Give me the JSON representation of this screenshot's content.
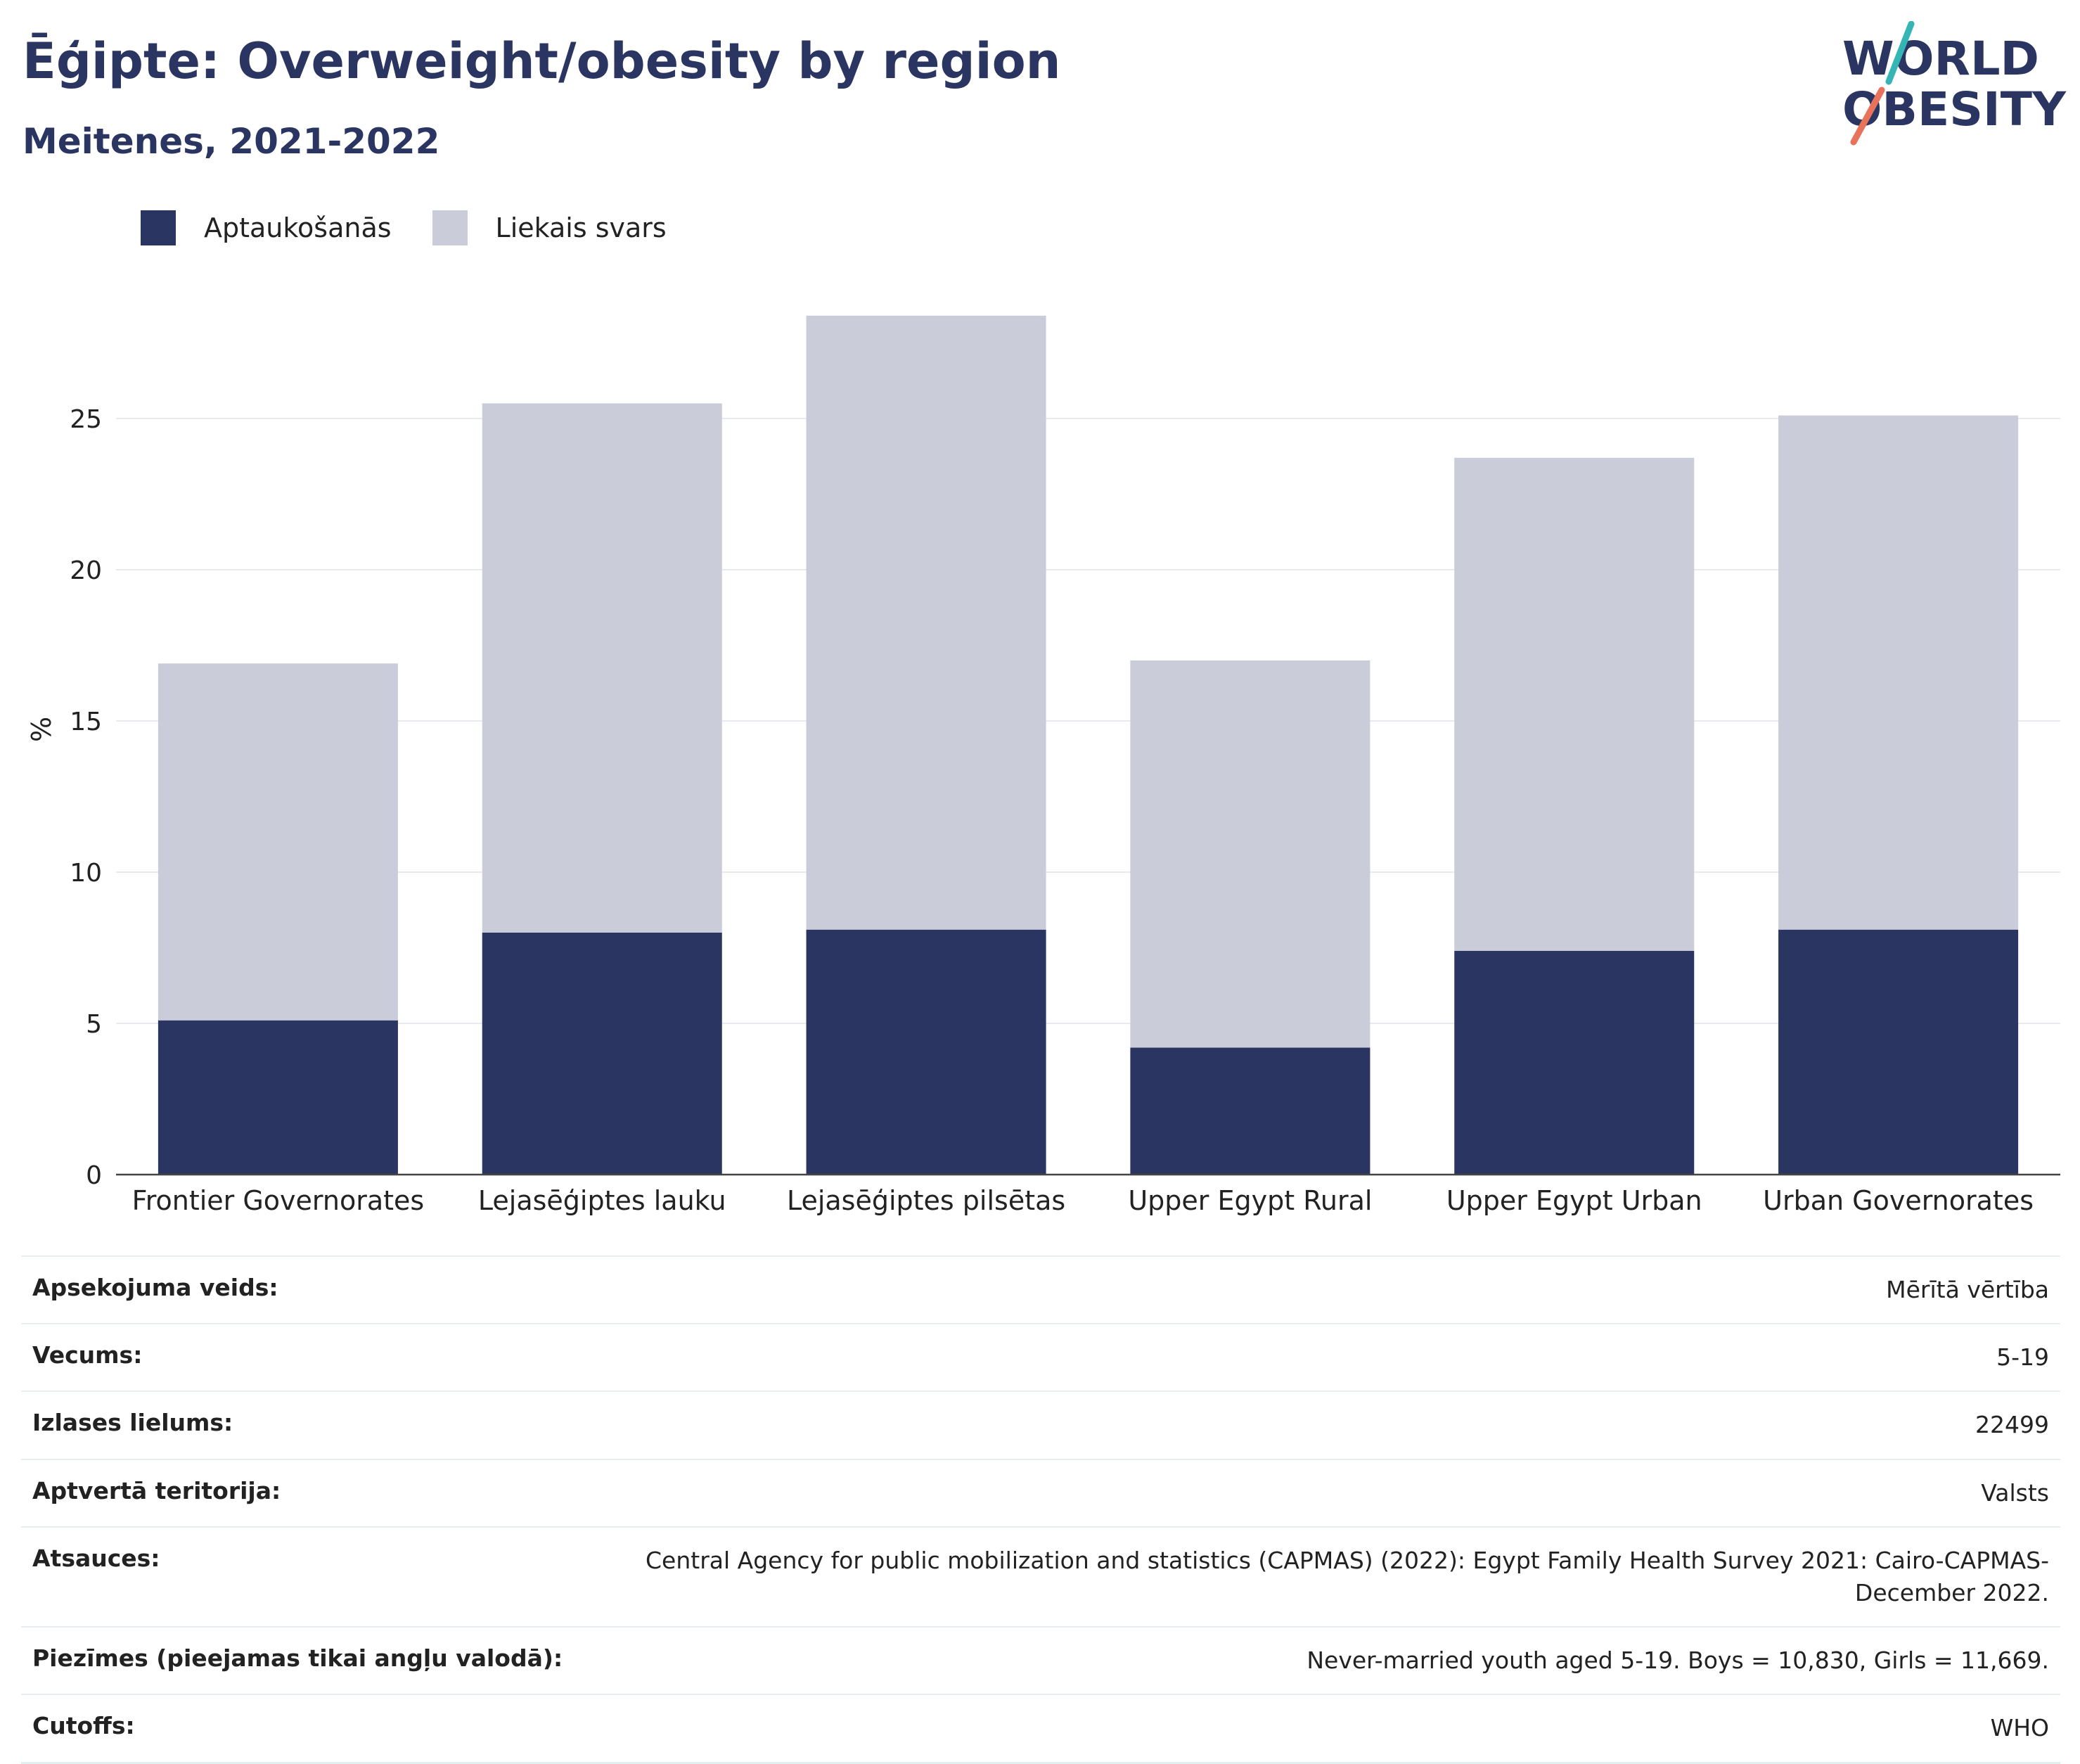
{
  "header": {
    "title": "Ēģipte: Overweight/obesity by region",
    "subtitle": "Meitenes, 2021-2022"
  },
  "logo": {
    "line1": "WORLD",
    "line2": "OBESITY",
    "icon": "world-obesity-logo",
    "accent_teal": "#35b6b4",
    "accent_coral": "#e8735a"
  },
  "legend": {
    "placement": "top-left",
    "items": [
      {
        "label": "Aptaukošanās",
        "color": "#2a3561"
      },
      {
        "label": "Liekais svars",
        "color": "#cacdd9"
      }
    ]
  },
  "chart_data": {
    "type": "bar",
    "stacked": true,
    "categories": [
      "Frontier Governorates",
      "Lejasēģiptes lauku",
      "Lejasēģiptes pilsētas",
      "Upper Egypt Rural",
      "Upper Egypt Urban",
      "Urban Governorates"
    ],
    "series": [
      {
        "name": "Aptaukošanās",
        "color": "#2a3561",
        "values": [
          5.1,
          8.0,
          8.1,
          4.2,
          7.4,
          8.1
        ]
      },
      {
        "name": "Liekais svars",
        "color": "#cacdd9",
        "values": [
          11.8,
          17.5,
          20.3,
          12.8,
          16.3,
          17.0
        ]
      }
    ],
    "ylabel": "%",
    "xlabel": "",
    "ylim": [
      0,
      30
    ],
    "yticks": [
      0,
      5,
      10,
      15,
      20,
      25
    ],
    "grid": true
  },
  "meta": [
    {
      "key": "Apsekojuma veids:",
      "value": "Mērītā vērtība"
    },
    {
      "key": "Vecums:",
      "value": "5-19"
    },
    {
      "key": "Izlases lielums:",
      "value": "22499"
    },
    {
      "key": "Aptvertā teritorija:",
      "value": "Valsts"
    },
    {
      "key": "Atsauces:",
      "value": "Central Agency for public mobilization and statistics (CAPMAS) (2022): Egypt Family Health Survey 2021: Cairo-CAPMAS-December 2022."
    },
    {
      "key": "Piezīmes (pieejamas tikai angļu valodā):",
      "value": "Never-married youth aged 5-19. Boys = 10,830, Girls = 11,669."
    },
    {
      "key": "Cutoffs:",
      "value": "WHO"
    }
  ]
}
